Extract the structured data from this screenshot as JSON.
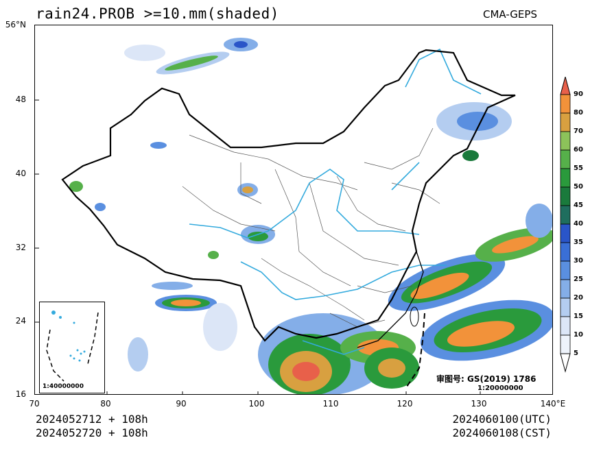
{
  "header": {
    "title": "rain24.PROB >=10.mm(shaded)",
    "source": "CMA-GEPS"
  },
  "axes": {
    "lat_labels": [
      "56°N",
      "48",
      "40",
      "32",
      "24",
      "16"
    ],
    "lon_labels": [
      "70",
      "80",
      "90",
      "100",
      "110",
      "120",
      "130",
      "140°E"
    ]
  },
  "footer": {
    "init_utc": "2024052712 + 108h",
    "init_cst": "2024052720 + 108h",
    "valid_utc": "2024060100(UTC)",
    "valid_cst": "2024060108(CST)"
  },
  "inset": {
    "scale": "1:40000000"
  },
  "review": {
    "text": "审图号: GS(2019) 1786",
    "scale": "1:20000000"
  },
  "colorbar": {
    "levels": [
      "90",
      "80",
      "70",
      "60",
      "55",
      "50",
      "45",
      "40",
      "35",
      "30",
      "25",
      "20",
      "15",
      "10",
      "5"
    ],
    "colors": {
      "5": "#ffffff",
      "10": "#dce6f7",
      "15": "#b4cdf0",
      "20": "#84aee8",
      "25": "#5a8fe0",
      "30": "#3a6fd6",
      "35": "#2a55c8",
      "40": "#1f6e5e",
      "45": "#1a7a3c",
      "50": "#2a9a3c",
      "55": "#56b04a",
      "60": "#8cc25a",
      "70": "#d8a040",
      "80": "#f2923a",
      "90": "#e8604a"
    }
  }
}
